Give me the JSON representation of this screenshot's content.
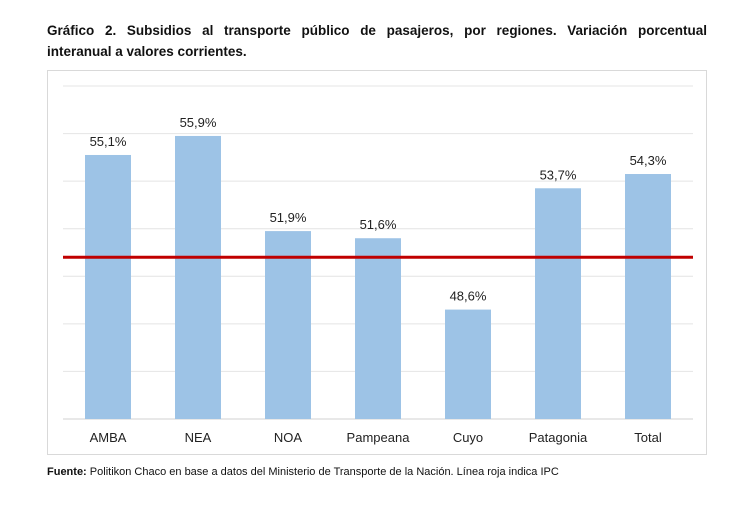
{
  "title_line1": "Gráfico 2. Subsidios al transporte público de pasajeros, por regiones. Variación porcentual",
  "title_line2": "interanual a valores corrientes.",
  "source_label": "Fuente:",
  "source_text": " Politikon Chaco en base a datos del Ministerio de Transporte de la Nación. Línea roja indica IPC",
  "chart_data": {
    "type": "bar",
    "categories": [
      "AMBA",
      "NEA",
      "NOA",
      "Pampeana",
      "Cuyo",
      "Patagonia",
      "Total"
    ],
    "values": [
      55.1,
      55.9,
      51.9,
      51.6,
      48.6,
      53.7,
      54.3
    ],
    "data_labels": [
      "55,1%",
      "55,9%",
      "51,9%",
      "51,6%",
      "48,6%",
      "53,7%",
      "54,3%"
    ],
    "ylim": [
      44,
      58
    ],
    "grid_step": 2,
    "grid": true,
    "y_tick_labels_shown": false,
    "reference_line": {
      "value": 50.8,
      "color": "#c00000"
    },
    "bar_color": "#9dc3e6"
  }
}
